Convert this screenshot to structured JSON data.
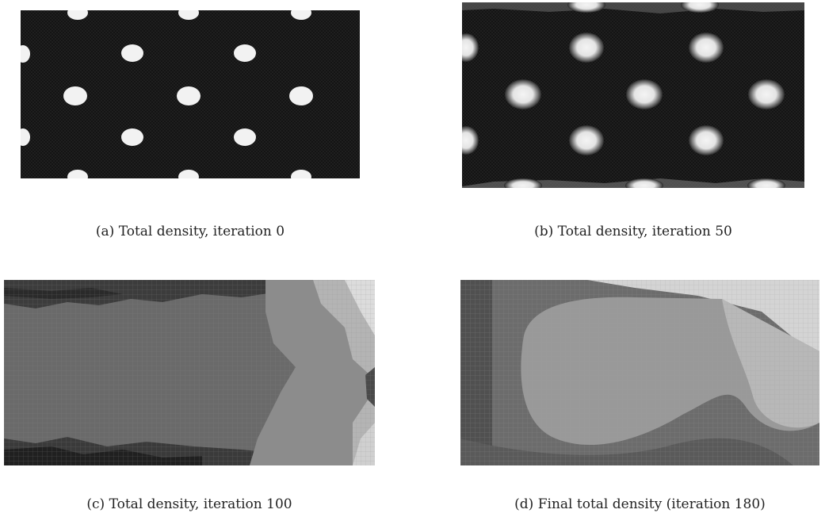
{
  "figure": {
    "panels": [
      {
        "id": "a",
        "caption": "(a)  Total density, iteration 0"
      },
      {
        "id": "b",
        "caption": "(b)  Total density, iteration 50"
      },
      {
        "id": "c",
        "caption": "(c)  Total density, iteration 100"
      },
      {
        "id": "d",
        "caption": "(d)  Final total density (iteration 180)"
      }
    ]
  },
  "colors": {
    "void": "#141414",
    "solid": "#f2f2f2",
    "mid_dark": "#4a4a4a",
    "mid": "#6a6a6a",
    "mid_light": "#9a9a9a",
    "light": "#d2d2d2"
  }
}
